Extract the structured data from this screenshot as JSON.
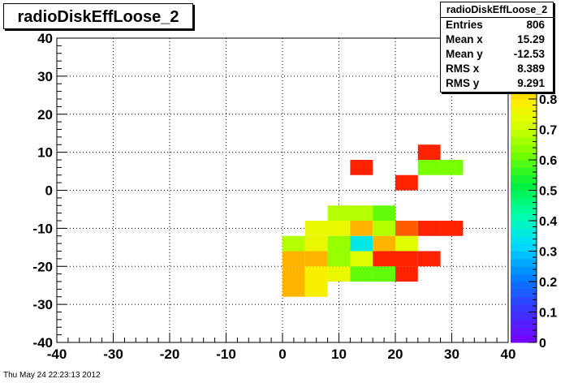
{
  "title": "radioDiskEffLoose_2",
  "stats": {
    "name": "radioDiskEffLoose_2",
    "rows": [
      {
        "label": "Entries",
        "value": "806"
      },
      {
        "label": "Mean x",
        "value": "15.29"
      },
      {
        "label": "Mean y",
        "value": "-12.53"
      },
      {
        "label": "RMS x",
        "value": "8.389"
      },
      {
        "label": "RMS y",
        "value": "9.291"
      }
    ]
  },
  "footer_date": "Thu May 24 22:23:13 2012",
  "chart_data": {
    "type": "heatmap",
    "title": "radioDiskEffLoose_2",
    "xlim": [
      -40,
      40
    ],
    "ylim": [
      -40,
      40
    ],
    "xticks": [
      "-40",
      "-30",
      "-20",
      "-10",
      "0",
      "10",
      "20",
      "30",
      "40"
    ],
    "yticks": [
      "-40",
      "-30",
      "-20",
      "-10",
      "0",
      "10",
      "20",
      "30",
      "40"
    ],
    "zlim": [
      0,
      1
    ],
    "zticks": [
      "0",
      "0.1",
      "0.2",
      "0.3",
      "0.4",
      "0.5",
      "0.6",
      "0.7",
      "0.8"
    ],
    "grid": true,
    "bin_width": 4,
    "cells": [
      {
        "x": 0,
        "y": -28,
        "z": 0.85
      },
      {
        "x": 4,
        "y": -28,
        "z": 0.78
      },
      {
        "x": 0,
        "y": -24,
        "z": 0.85
      },
      {
        "x": 4,
        "y": -24,
        "z": 0.78
      },
      {
        "x": 8,
        "y": -24,
        "z": 0.75
      },
      {
        "x": 12,
        "y": -24,
        "z": 0.6
      },
      {
        "x": 16,
        "y": -24,
        "z": 0.6
      },
      {
        "x": 20,
        "y": -24,
        "z": 0.97
      },
      {
        "x": 0,
        "y": -20,
        "z": 0.85
      },
      {
        "x": 4,
        "y": -20,
        "z": 0.85
      },
      {
        "x": 8,
        "y": -20,
        "z": 0.65
      },
      {
        "x": 12,
        "y": -20,
        "z": 0.73
      },
      {
        "x": 16,
        "y": -20,
        "z": 0.97
      },
      {
        "x": 20,
        "y": -20,
        "z": 0.97
      },
      {
        "x": 24,
        "y": -20,
        "z": 0.97
      },
      {
        "x": 0,
        "y": -16,
        "z": 0.68
      },
      {
        "x": 4,
        "y": -16,
        "z": 0.75
      },
      {
        "x": 8,
        "y": -16,
        "z": 0.65
      },
      {
        "x": 12,
        "y": -16,
        "z": 0.35
      },
      {
        "x": 16,
        "y": -16,
        "z": 0.85
      },
      {
        "x": 20,
        "y": -16,
        "z": 0.73
      },
      {
        "x": 4,
        "y": -12,
        "z": 0.75
      },
      {
        "x": 8,
        "y": -12,
        "z": 0.75
      },
      {
        "x": 12,
        "y": -12,
        "z": 0.85
      },
      {
        "x": 16,
        "y": -12,
        "z": 0.68
      },
      {
        "x": 20,
        "y": -12,
        "z": 0.92
      },
      {
        "x": 24,
        "y": -12,
        "z": 0.97
      },
      {
        "x": 28,
        "y": -12,
        "z": 0.97
      },
      {
        "x": 8,
        "y": -8,
        "z": 0.68
      },
      {
        "x": 12,
        "y": -8,
        "z": 0.68
      },
      {
        "x": 16,
        "y": -8,
        "z": 0.6
      },
      {
        "x": 20,
        "y": 0,
        "z": 0.97
      },
      {
        "x": 12,
        "y": 4,
        "z": 0.97
      },
      {
        "x": 24,
        "y": 4,
        "z": 0.62
      },
      {
        "x": 28,
        "y": 4,
        "z": 0.62
      },
      {
        "x": 24,
        "y": 8,
        "z": 0.97
      }
    ]
  }
}
